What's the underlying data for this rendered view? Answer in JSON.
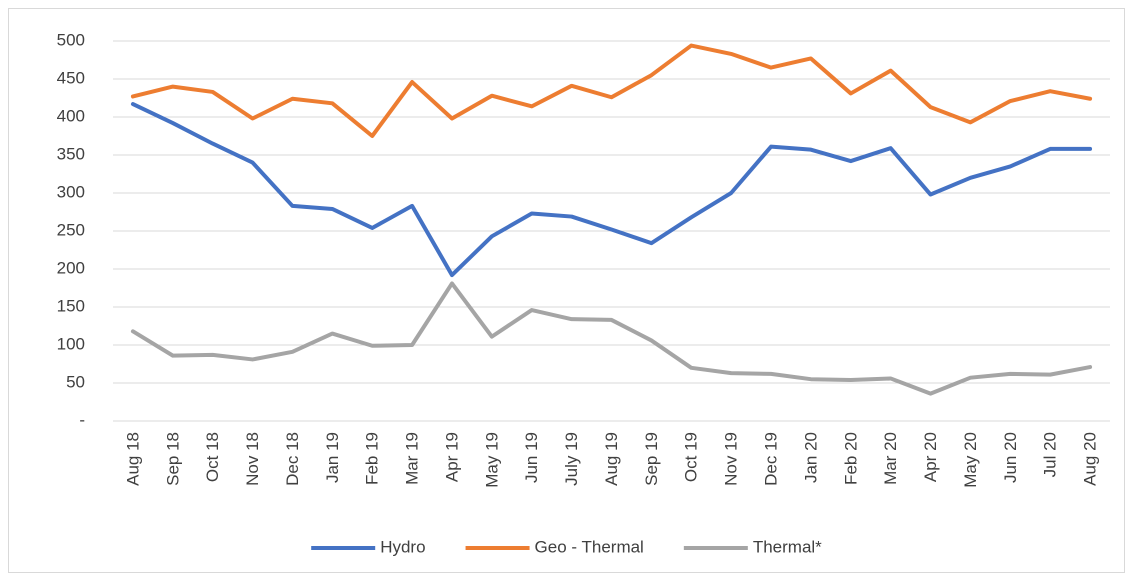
{
  "chart_data": {
    "type": "line",
    "categories": [
      "Aug 18",
      "Sep 18",
      "Oct 18",
      "Nov 18",
      "Dec 18",
      "Jan 19",
      "Feb 19",
      "Mar 19",
      "Apr 19",
      "May 19",
      "Jun 19",
      "July 19",
      "Aug 19",
      "Sep 19",
      "Oct 19",
      "Nov 19",
      "Dec 19",
      "Jan 20",
      "Feb 20",
      "Mar 20",
      "Apr 20",
      "May 20",
      "Jun 20",
      "Jul 20",
      "Aug 20"
    ],
    "series": [
      {
        "name": "Hydro",
        "color": "#4472c4",
        "values": [
          417,
          392,
          365,
          340,
          283,
          279,
          254,
          283,
          192,
          243,
          273,
          269,
          252,
          234,
          268,
          300,
          361,
          357,
          342,
          359,
          298,
          320,
          335,
          358,
          358
        ]
      },
      {
        "name": "Geo - Thermal",
        "color": "#ed7d31",
        "values": [
          427,
          440,
          433,
          398,
          424,
          418,
          375,
          446,
          398,
          428,
          414,
          441,
          426,
          455,
          494,
          483,
          465,
          477,
          431,
          461,
          413,
          393,
          421,
          434,
          424
        ]
      },
      {
        "name": "Thermal*",
        "color": "#a5a5a5",
        "values": [
          118,
          86,
          87,
          81,
          91,
          115,
          99,
          100,
          181,
          111,
          146,
          134,
          133,
          106,
          70,
          63,
          62,
          55,
          54,
          56,
          36,
          57,
          62,
          61,
          71
        ]
      }
    ],
    "ylim": [
      0,
      500
    ],
    "yticks": [
      {
        "value": 0,
        "label": "-"
      },
      50,
      100,
      150,
      200,
      250,
      300,
      350,
      400,
      450,
      500
    ],
    "grid": true,
    "legend": "bottom"
  }
}
